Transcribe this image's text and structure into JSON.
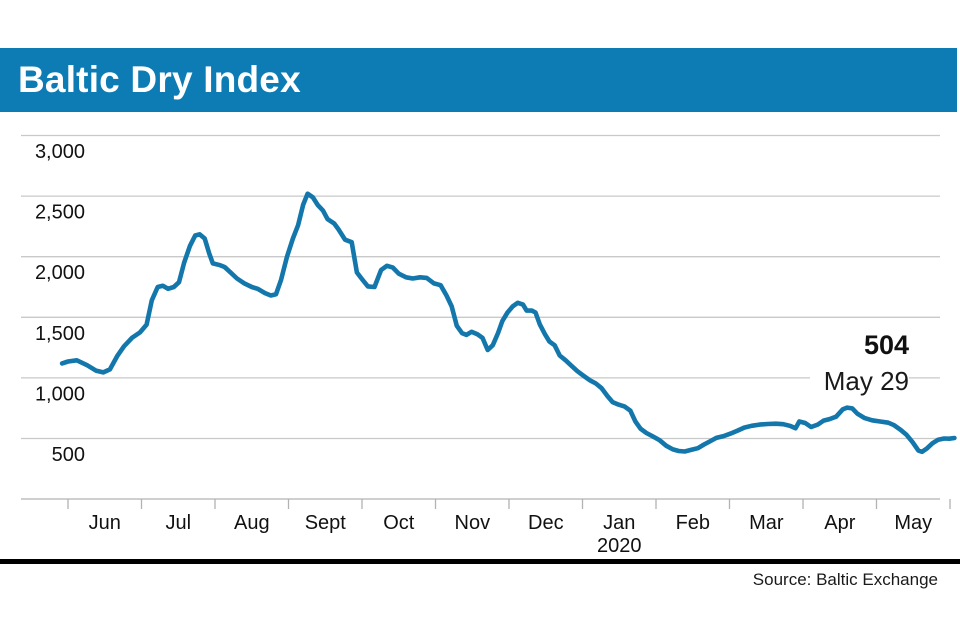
{
  "title": "Baltic Dry Index",
  "source": "Source: Baltic Exchange",
  "annotation": {
    "value": "504",
    "date": "May 29"
  },
  "colors": {
    "title_bar": "#0d7cb4",
    "line": "#1377ac",
    "gridline": "#c9c9c9",
    "axis": "#b2b2b2",
    "text": "#111111",
    "rule": "#000000",
    "title_text": "#ffffff"
  },
  "chart_data": {
    "type": "line",
    "title": "Baltic Dry Index",
    "series_name": "Baltic Dry Index",
    "x_unit": "months elapsed since 1 Jun 2019 (t=0 is Jun tick, t=12 is end of May 2020)",
    "months": [
      {
        "label": "Jun"
      },
      {
        "label": "Jul"
      },
      {
        "label": "Aug"
      },
      {
        "label": "Sept"
      },
      {
        "label": "Oct"
      },
      {
        "label": "Nov"
      },
      {
        "label": "Dec"
      },
      {
        "label": "Jan",
        "sub": "2020"
      },
      {
        "label": "Feb"
      },
      {
        "label": "Mar"
      },
      {
        "label": "Apr"
      },
      {
        "label": "May"
      }
    ],
    "y_ticks": [
      {
        "v": 500,
        "label": "500"
      },
      {
        "v": 1000,
        "label": "1,000"
      },
      {
        "v": 1500,
        "label": "1,500"
      },
      {
        "v": 2000,
        "label": "2,000"
      },
      {
        "v": 2500,
        "label": "2,500"
      },
      {
        "v": 3000,
        "label": "3,000"
      }
    ],
    "ylim": [
      380,
      3050
    ],
    "grid": true,
    "legend": false,
    "last_point": {
      "value": 504,
      "date_label": "May 29"
    },
    "points": [
      [
        -0.08,
        1120
      ],
      [
        0.0,
        1135
      ],
      [
        0.12,
        1145
      ],
      [
        0.26,
        1105
      ],
      [
        0.38,
        1060
      ],
      [
        0.48,
        1045
      ],
      [
        0.57,
        1070
      ],
      [
        0.67,
        1180
      ],
      [
        0.76,
        1260
      ],
      [
        0.87,
        1330
      ],
      [
        0.98,
        1375
      ],
      [
        1.07,
        1440
      ],
      [
        1.14,
        1640
      ],
      [
        1.22,
        1750
      ],
      [
        1.29,
        1760
      ],
      [
        1.36,
        1735
      ],
      [
        1.44,
        1750
      ],
      [
        1.51,
        1790
      ],
      [
        1.58,
        1950
      ],
      [
        1.66,
        2090
      ],
      [
        1.73,
        2175
      ],
      [
        1.79,
        2185
      ],
      [
        1.86,
        2150
      ],
      [
        1.92,
        2030
      ],
      [
        1.97,
        1945
      ],
      [
        2.07,
        1930
      ],
      [
        2.13,
        1915
      ],
      [
        2.22,
        1865
      ],
      [
        2.3,
        1820
      ],
      [
        2.4,
        1780
      ],
      [
        2.5,
        1750
      ],
      [
        2.58,
        1735
      ],
      [
        2.68,
        1700
      ],
      [
        2.76,
        1680
      ],
      [
        2.83,
        1690
      ],
      [
        2.9,
        1810
      ],
      [
        2.98,
        2000
      ],
      [
        3.06,
        2150
      ],
      [
        3.13,
        2260
      ],
      [
        3.2,
        2430
      ],
      [
        3.26,
        2520
      ],
      [
        3.33,
        2490
      ],
      [
        3.4,
        2425
      ],
      [
        3.47,
        2380
      ],
      [
        3.53,
        2310
      ],
      [
        3.62,
        2275
      ],
      [
        3.68,
        2225
      ],
      [
        3.77,
        2140
      ],
      [
        3.86,
        2120
      ],
      [
        3.93,
        1870
      ],
      [
        4.0,
        1815
      ],
      [
        4.08,
        1755
      ],
      [
        4.17,
        1750
      ],
      [
        4.26,
        1890
      ],
      [
        4.34,
        1925
      ],
      [
        4.42,
        1910
      ],
      [
        4.5,
        1860
      ],
      [
        4.6,
        1830
      ],
      [
        4.69,
        1820
      ],
      [
        4.79,
        1830
      ],
      [
        4.88,
        1825
      ],
      [
        4.98,
        1780
      ],
      [
        5.07,
        1765
      ],
      [
        5.15,
        1680
      ],
      [
        5.22,
        1590
      ],
      [
        5.29,
        1430
      ],
      [
        5.36,
        1370
      ],
      [
        5.42,
        1355
      ],
      [
        5.49,
        1380
      ],
      [
        5.57,
        1360
      ],
      [
        5.64,
        1330
      ],
      [
        5.71,
        1230
      ],
      [
        5.78,
        1270
      ],
      [
        5.85,
        1370
      ],
      [
        5.91,
        1470
      ],
      [
        5.98,
        1540
      ],
      [
        6.05,
        1590
      ],
      [
        6.12,
        1620
      ],
      [
        6.19,
        1605
      ],
      [
        6.24,
        1555
      ],
      [
        6.31,
        1555
      ],
      [
        6.36,
        1540
      ],
      [
        6.42,
        1440
      ],
      [
        6.49,
        1360
      ],
      [
        6.55,
        1300
      ],
      [
        6.62,
        1270
      ],
      [
        6.69,
        1185
      ],
      [
        6.77,
        1145
      ],
      [
        6.85,
        1100
      ],
      [
        6.93,
        1055
      ],
      [
        7.02,
        1015
      ],
      [
        7.1,
        980
      ],
      [
        7.18,
        955
      ],
      [
        7.26,
        915
      ],
      [
        7.34,
        850
      ],
      [
        7.41,
        800
      ],
      [
        7.49,
        780
      ],
      [
        7.57,
        765
      ],
      [
        7.65,
        730
      ],
      [
        7.72,
        640
      ],
      [
        7.79,
        580
      ],
      [
        7.87,
        545
      ],
      [
        7.95,
        520
      ],
      [
        8.05,
        485
      ],
      [
        8.14,
        440
      ],
      [
        8.23,
        410
      ],
      [
        8.31,
        397
      ],
      [
        8.39,
        393
      ],
      [
        8.47,
        405
      ],
      [
        8.57,
        420
      ],
      [
        8.65,
        450
      ],
      [
        8.73,
        475
      ],
      [
        8.82,
        505
      ],
      [
        8.92,
        520
      ],
      [
        9.01,
        540
      ],
      [
        9.11,
        565
      ],
      [
        9.2,
        590
      ],
      [
        9.3,
        605
      ],
      [
        9.41,
        615
      ],
      [
        9.52,
        620
      ],
      [
        9.63,
        622
      ],
      [
        9.73,
        618
      ],
      [
        9.82,
        605
      ],
      [
        9.9,
        585
      ],
      [
        9.95,
        640
      ],
      [
        10.03,
        628
      ],
      [
        10.11,
        595
      ],
      [
        10.2,
        615
      ],
      [
        10.28,
        648
      ],
      [
        10.36,
        660
      ],
      [
        10.45,
        680
      ],
      [
        10.54,
        740
      ],
      [
        10.6,
        755
      ],
      [
        10.67,
        748
      ],
      [
        10.74,
        705
      ],
      [
        10.84,
        668
      ],
      [
        10.94,
        650
      ],
      [
        11.05,
        640
      ],
      [
        11.16,
        630
      ],
      [
        11.24,
        610
      ],
      [
        11.33,
        570
      ],
      [
        11.41,
        530
      ],
      [
        11.49,
        470
      ],
      [
        11.57,
        400
      ],
      [
        11.62,
        390
      ],
      [
        11.69,
        420
      ],
      [
        11.76,
        460
      ],
      [
        11.84,
        490
      ],
      [
        11.92,
        500
      ],
      [
        11.99,
        498
      ],
      [
        12.06,
        504
      ]
    ]
  }
}
